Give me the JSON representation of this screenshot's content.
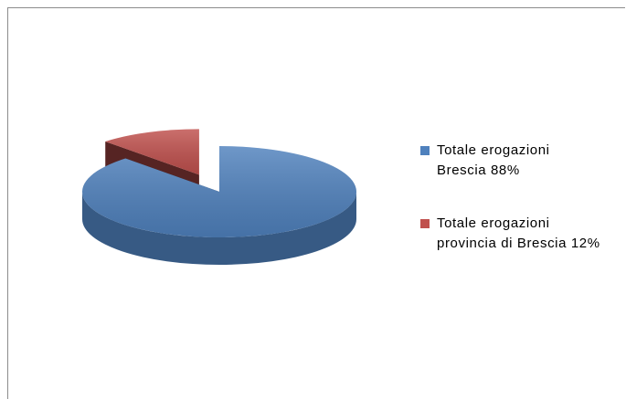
{
  "chart_data": {
    "type": "pie",
    "categories": [
      "Totale erogazioni Brescia 88%",
      "Totale erogazioni provincia di Brescia 12%"
    ],
    "values": [
      88,
      12
    ],
    "colors": [
      "#4f81bd",
      "#c0504d"
    ],
    "explode": [
      false,
      true
    ],
    "legend": "right"
  }
}
